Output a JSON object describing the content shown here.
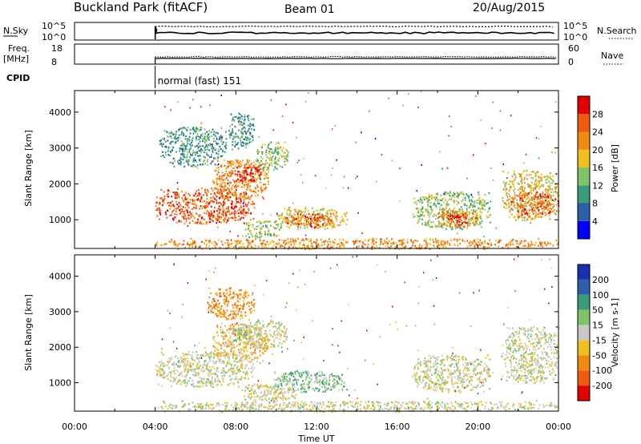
{
  "header": {
    "title": "Buckland Park (fitACF)",
    "beam": "Beam 01",
    "date": "20/Aug/2015"
  },
  "status_panels": {
    "nsky_label": "N.Sky",
    "nsky_ticks": [
      "10^5",
      "10^0"
    ],
    "nsearch_label": "N.Search",
    "nsearch_ticks": [
      "10^5",
      "10^0"
    ],
    "freq_label_1": "Freq.",
    "freq_label_2": "[MHz]",
    "freq_ticks": [
      "18",
      "8"
    ],
    "nave_label": "Nave",
    "nave_ticks": [
      "60",
      "0"
    ],
    "cpid_label": "CPID",
    "cpid_value": "normal (fast) 151",
    "data_start_hour": 4
  },
  "colors": {
    "power": [
      "#0000ff",
      "#2d5fa8",
      "#3a9a7a",
      "#7fc46a",
      "#f0c020",
      "#f08a10",
      "#f05a10",
      "#e00000"
    ],
    "velocity": [
      "#e00000",
      "#f05a10",
      "#f08a10",
      "#f0c020",
      "#c8c8c8",
      "#7fc46a",
      "#3a9a7a",
      "#2d5fa8",
      "#1a2fb0"
    ],
    "ground_scatter": "#c0c0c0"
  },
  "chart_data": [
    {
      "type": "heatmap",
      "name": "power",
      "ylabel": "Slant Range [km]",
      "colorbar_label": "Power [dB]",
      "colorbar_ticks": [
        "4",
        "8",
        "12",
        "16",
        "20",
        "24",
        "28"
      ],
      "xlim": [
        0,
        24
      ],
      "ylim": [
        200,
        4600
      ],
      "yticks": [
        "1000",
        "2000",
        "3000",
        "4000"
      ],
      "regions": [
        {
          "t0": 4.0,
          "t1": 8.9,
          "r0": 900,
          "r1": 1900,
          "level": 6
        },
        {
          "t0": 6.8,
          "t1": 9.6,
          "r0": 1600,
          "r1": 2700,
          "level": 5
        },
        {
          "t0": 7.9,
          "t1": 9.3,
          "r0": 2050,
          "r1": 2500,
          "level": 7
        },
        {
          "t0": 9.0,
          "t1": 10.6,
          "r0": 2400,
          "r1": 3200,
          "level": 3
        },
        {
          "t0": 4.2,
          "t1": 7.5,
          "r0": 2500,
          "r1": 3600,
          "level": 2
        },
        {
          "t0": 7.6,
          "t1": 8.9,
          "r0": 3000,
          "r1": 4000,
          "level": 2
        },
        {
          "t0": 9.8,
          "t1": 13.5,
          "r0": 750,
          "r1": 1350,
          "level": 4
        },
        {
          "t0": 10.4,
          "t1": 12.8,
          "r0": 800,
          "r1": 1200,
          "level": 6
        },
        {
          "t0": 8.3,
          "t1": 10.3,
          "r0": 500,
          "r1": 1000,
          "level": 3
        },
        {
          "t0": 16.7,
          "t1": 20.6,
          "r0": 750,
          "r1": 1800,
          "level": 3
        },
        {
          "t0": 17.8,
          "t1": 20.0,
          "r0": 800,
          "r1": 1300,
          "level": 5
        },
        {
          "t0": 18.5,
          "t1": 19.5,
          "r0": 850,
          "r1": 1200,
          "level": 7
        },
        {
          "t0": 21.2,
          "t1": 24.0,
          "r0": 1000,
          "r1": 2400,
          "level": 4
        },
        {
          "t0": 21.6,
          "t1": 24.0,
          "r0": 1100,
          "r1": 1800,
          "level": 6
        },
        {
          "t0": 4.0,
          "t1": 24.0,
          "r0": 200,
          "r1": 500,
          "level": 5
        }
      ]
    },
    {
      "type": "heatmap",
      "name": "velocity",
      "ylabel": "Slant Range [km]",
      "colorbar_label": "Velocity [m s-1]",
      "colorbar_ticks": [
        "-200",
        "-100",
        "-50",
        "-15",
        "15",
        "50",
        "100",
        "200"
      ],
      "xlabel": "Time UT",
      "xticks": [
        "00:00",
        "04:00",
        "08:00",
        "12:00",
        "16:00",
        "20:00",
        "00:00"
      ],
      "xlim": [
        0,
        24
      ],
      "ylim": [
        200,
        4600
      ],
      "yticks": [
        "1000",
        "2000",
        "3000",
        "4000"
      ],
      "regions": [
        {
          "t0": 4.0,
          "t1": 8.9,
          "r0": 900,
          "r1": 1900,
          "level": 4
        },
        {
          "t0": 6.8,
          "t1": 9.6,
          "r0": 1600,
          "r1": 2700,
          "level": 3
        },
        {
          "t0": 8.0,
          "t1": 10.6,
          "r0": 2000,
          "r1": 2800,
          "level": 4
        },
        {
          "t0": 7.8,
          "t1": 8.5,
          "r0": 2200,
          "r1": 2600,
          "level": 5
        },
        {
          "t0": 6.5,
          "t1": 8.9,
          "r0": 2800,
          "r1": 3700,
          "level": 2
        },
        {
          "t0": 9.8,
          "t1": 13.5,
          "r0": 750,
          "r1": 1350,
          "level": 5
        },
        {
          "t0": 8.2,
          "t1": 11.0,
          "r0": 500,
          "r1": 1000,
          "level": 4
        },
        {
          "t0": 16.7,
          "t1": 20.6,
          "r0": 750,
          "r1": 1800,
          "level": 4
        },
        {
          "t0": 21.2,
          "t1": 24.0,
          "r0": 1000,
          "r1": 2600,
          "level": 4
        },
        {
          "t0": 4.0,
          "t1": 24.0,
          "r0": 200,
          "r1": 500,
          "level": 4
        }
      ]
    }
  ]
}
